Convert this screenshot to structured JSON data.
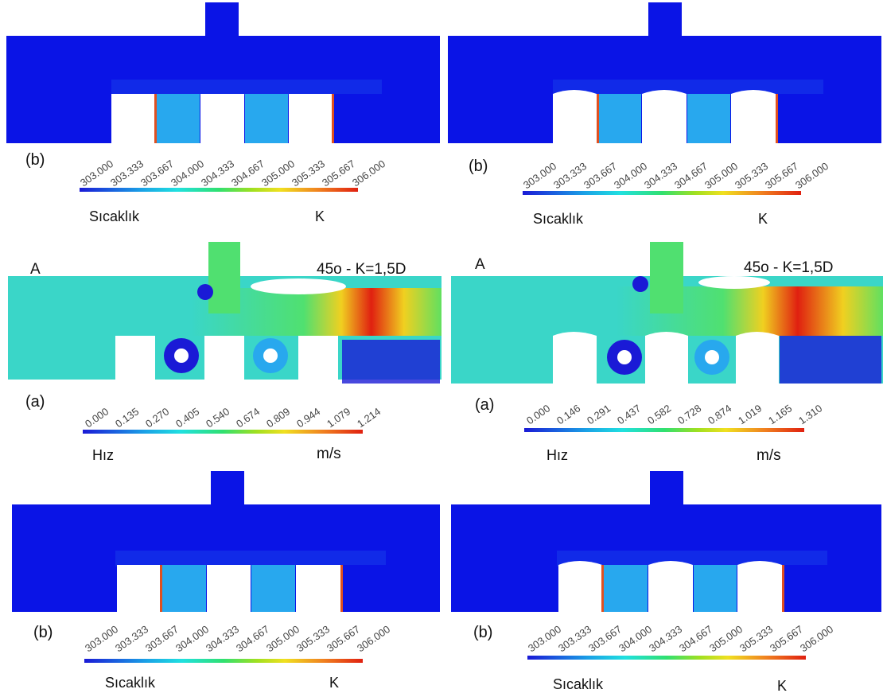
{
  "temperature_scale": {
    "ticks": [
      "303.000",
      "303.333",
      "303.667",
      "304.000",
      "304.333",
      "304.667",
      "305.000",
      "305.333",
      "305.667",
      "306.000"
    ],
    "quantity_label": "Sıcaklık",
    "unit_label": "K"
  },
  "panels": {
    "top_left": {
      "tag": "(b)"
    },
    "top_right": {
      "tag": "(b)"
    },
    "bottom_left": {
      "tag": "(b)"
    },
    "bottom_right": {
      "tag": "(b)"
    },
    "mid_left": {
      "tag": "(a)",
      "corner_label": "A",
      "case_label": "45o - K=1,5D",
      "ticks": [
        "0.000",
        "0.135",
        "0.270",
        "0.405",
        "0.540",
        "0.674",
        "0.809",
        "0.944",
        "1.079",
        "1.214"
      ],
      "quantity_label": "Hız",
      "unit_label": "m/s"
    },
    "mid_right": {
      "tag": "(a)",
      "corner_label": "A",
      "case_label": "45o - K=1,5D",
      "ticks": [
        "0.000",
        "0.146",
        "0.291",
        "0.437",
        "0.582",
        "0.728",
        "0.874",
        "1.019",
        "1.165",
        "1.310"
      ],
      "quantity_label": "Hız",
      "unit_label": "m/s"
    }
  },
  "colors": {
    "cold": "#0a14e6",
    "cavity": "#1e96ea",
    "flow_base": "#3ad6c8",
    "hot": "#e02010"
  }
}
